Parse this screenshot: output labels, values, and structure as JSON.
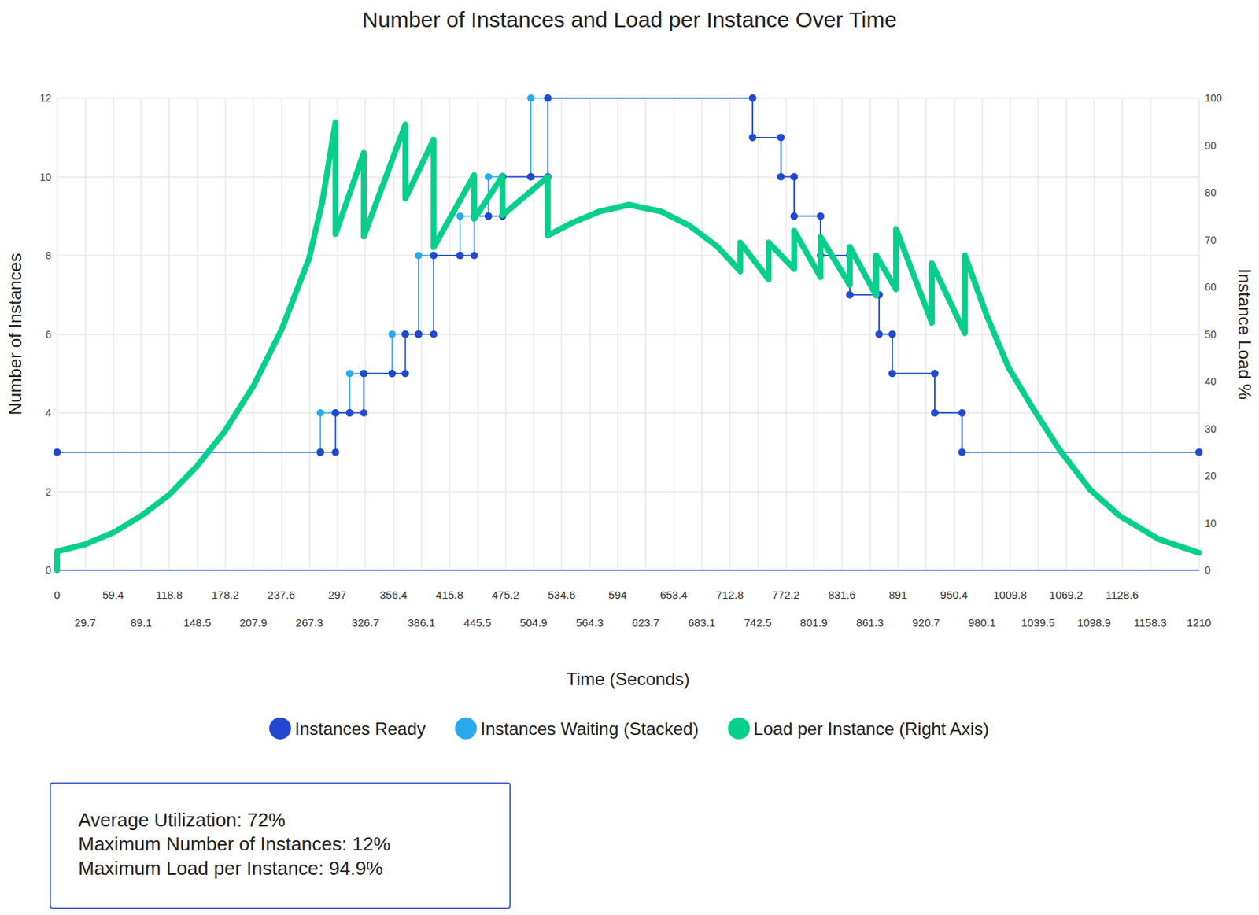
{
  "chart_data": {
    "type": "line",
    "title": "Number of Instances and Load per Instance Over Time",
    "x_label": "Time (Seconds)",
    "y_label": "Number of Instances",
    "y2_label": "Instance Load %",
    "xlim": [
      0,
      1210
    ],
    "xticks": [
      0,
      29.7,
      59.4,
      89.1,
      118.8,
      148.5,
      178.2,
      207.9,
      237.6,
      267.3,
      297,
      326.7,
      356.4,
      386.1,
      415.8,
      445.5,
      475.2,
      504.9,
      534.6,
      564.3,
      594,
      623.7,
      653.4,
      683.1,
      712.8,
      742.5,
      772.2,
      801.9,
      831.6,
      861.3,
      891,
      920.7,
      950.4,
      980.1,
      1009.8,
      1039.5,
      1069.2,
      1098.9,
      1128.6,
      1158.3,
      1210
    ],
    "ylim": [
      0,
      12
    ],
    "yticks": [
      0,
      2,
      4,
      6,
      8,
      10,
      12
    ],
    "y2lim": [
      0,
      100
    ],
    "y2ticks": [
      0,
      10,
      20,
      30,
      40,
      50,
      60,
      70,
      80,
      90,
      100
    ],
    "grid": true,
    "legend": "bottom",
    "stacked": true,
    "series": [
      {
        "name": "Instances Ready",
        "color": "#2447d0",
        "marker": "circle",
        "line_style": "solid",
        "x": [
          0,
          279,
          279,
          295,
          295,
          310,
          310,
          325,
          325,
          355,
          355,
          369,
          369,
          383,
          383,
          399,
          399,
          427,
          427,
          442,
          442,
          457,
          457,
          472,
          472,
          502,
          502,
          520,
          520,
          737,
          737,
          767,
          767,
          781,
          781,
          809,
          809,
          840,
          840,
          871,
          871,
          885,
          885,
          930,
          930,
          959,
          959,
          1210
        ],
        "values": [
          3,
          3,
          3,
          3,
          4,
          4,
          4,
          4,
          5,
          5,
          5,
          5,
          6,
          6,
          6,
          6,
          8,
          8,
          8,
          8,
          9,
          9,
          9,
          9,
          10,
          10,
          10,
          10,
          12,
          12,
          11,
          11,
          10,
          10,
          9,
          9,
          8,
          8,
          7,
          7,
          6,
          6,
          5,
          5,
          4,
          4,
          3,
          3
        ]
      },
      {
        "name": "Instances Waiting (Stacked)",
        "color": "#29a9ee",
        "marker": "circle",
        "line_style": "solid",
        "x": [
          0,
          279,
          279,
          295,
          295,
          310,
          310,
          325,
          325,
          355,
          355,
          369,
          369,
          383,
          383,
          399,
          399,
          427,
          427,
          442,
          442,
          457,
          457,
          472,
          472,
          502,
          502,
          520,
          520,
          737,
          737,
          767,
          767,
          781,
          781,
          809,
          809,
          840,
          840,
          871,
          871,
          885,
          885,
          930,
          930,
          959,
          959,
          1210
        ],
        "values": [
          0,
          0,
          1,
          1,
          0,
          0,
          1,
          1,
          0,
          0,
          1,
          1,
          0,
          0,
          2,
          2,
          0,
          0,
          1,
          1,
          0,
          0,
          1,
          1,
          0,
          0,
          2,
          2,
          0,
          0,
          0,
          0,
          0,
          0,
          0,
          0,
          0,
          0,
          0,
          0,
          0,
          0,
          0,
          0,
          0,
          0,
          0,
          0
        ]
      },
      {
        "name": "Load per Instance (Right Axis)",
        "color": "#08cf8c",
        "axis": "y2",
        "marker": "none",
        "line_style": "solid",
        "x": [
          0,
          0,
          30,
          60,
          89,
          119,
          148,
          178,
          208,
          238,
          267,
          281,
          295,
          295,
          325,
          325,
          369,
          369,
          399,
          399,
          442,
          442,
          472,
          472,
          520,
          520,
          545,
          575,
          606,
          640,
          670,
          700,
          724,
          724,
          754,
          754,
          781,
          781,
          809,
          809,
          840,
          840,
          868,
          868,
          889,
          889,
          927,
          927,
          962,
          962,
          985,
          1008,
          1035,
          1063,
          1095,
          1126,
          1168,
          1210
        ],
        "values": [
          0,
          4,
          5.5,
          8,
          11.5,
          16,
          22,
          29.5,
          39,
          51,
          66,
          78,
          94.9,
          71.2,
          88.4,
          70.7,
          94.4,
          78.7,
          91.2,
          68.4,
          83.7,
          74.4,
          83.5,
          75.2,
          83.3,
          70.9,
          73.5,
          76,
          77.4,
          76,
          73,
          68.5,
          63.3,
          69.4,
          61.6,
          69.4,
          63.8,
          71.9,
          62.1,
          70.6,
          60.4,
          68.5,
          58.2,
          66.7,
          59.5,
          72.3,
          52.4,
          65,
          50.2,
          66.7,
          54,
          43,
          34,
          25.3,
          17,
          11.5,
          6.5,
          3.7
        ]
      }
    ],
    "annotations": [
      "Average Utilization: 72%",
      "Maximum Number of Instances: 12%",
      "Maximum Load per Instance: 94.9%"
    ]
  }
}
